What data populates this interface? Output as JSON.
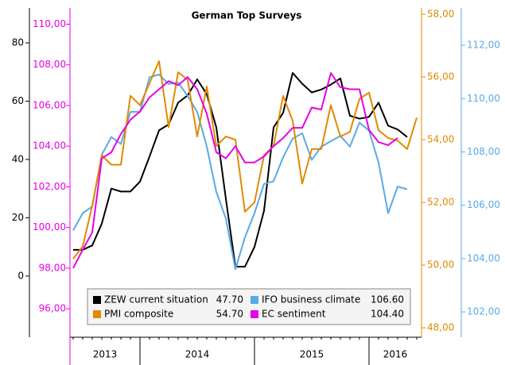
{
  "chart_data": {
    "type": "line",
    "title": "German Top Surveys",
    "categories": [
      null,
      null,
      null,
      null,
      null,
      null,
      null,
      null,
      null,
      null,
      null,
      null,
      null,
      null,
      null,
      null,
      null,
      null,
      null,
      null,
      null,
      null,
      null,
      null,
      null,
      null,
      null,
      null,
      null,
      null,
      null,
      null,
      null,
      null,
      null,
      null,
      null
    ],
    "year_labels": [
      "2013",
      "2014",
      "2015",
      "2016"
    ],
    "ylim": [
      -21,
      92
    ],
    "yticks": [
      0,
      20,
      40,
      60,
      80
    ],
    "y2lim": [
      94.6,
      110.8
    ],
    "y2ticks": [
      {
        "value": 96,
        "label": "96,00"
      },
      {
        "value": 98,
        "label": "98,00"
      },
      {
        "value": 100,
        "label": "100,00"
      },
      {
        "value": 102,
        "label": "102,00"
      },
      {
        "value": 104,
        "label": "104,00"
      },
      {
        "value": 106,
        "label": "106,00"
      },
      {
        "value": 108,
        "label": "108,00"
      },
      {
        "value": 110,
        "label": "110,00"
      }
    ],
    "y3lim": [
      47.7,
      58.2
    ],
    "y3ticks": [
      {
        "value": 48,
        "label": "48,00"
      },
      {
        "value": 50,
        "label": "50,00"
      },
      {
        "value": 52,
        "label": "52,00"
      },
      {
        "value": 54,
        "label": "54,00"
      },
      {
        "value": 56,
        "label": "56,00"
      },
      {
        "value": 58,
        "label": "58,00"
      }
    ],
    "y4lim": [
      101.05,
      113.4
    ],
    "y4ticks": [
      {
        "value": 102,
        "label": "102,00"
      },
      {
        "value": 104,
        "label": "104,00"
      },
      {
        "value": 106,
        "label": "106,00"
      },
      {
        "value": 108,
        "label": "108,00"
      },
      {
        "value": 110,
        "label": "110,00"
      },
      {
        "value": 112,
        "label": "112,00"
      }
    ],
    "axis_colors": {
      "y": "#000000",
      "y2": "#e600e6",
      "y3": "#e08a00",
      "y4": "#5aaae6"
    },
    "series": [
      {
        "name": "ZEW current situation",
        "legend_value": "47.70",
        "color": "#000000",
        "axis": "y",
        "values": [
          9,
          9,
          10.5,
          18,
          30,
          29,
          29,
          32.4,
          41,
          50,
          52,
          59.5,
          62,
          67.5,
          62.4,
          51,
          26.5,
          3.2,
          3.2,
          10,
          22.4,
          51,
          56,
          69.7,
          66,
          63,
          64,
          65.7,
          67.8,
          55,
          54,
          54.6,
          59.5,
          51.6,
          50.3,
          47.7,
          null
        ]
      },
      {
        "name": "IFO business climate",
        "legend_value": "106.60",
        "color": "#5aaae6",
        "axis": "y4",
        "values": [
          105.06,
          105.7,
          105.95,
          107.9,
          108.56,
          108.3,
          109.5,
          109.5,
          110.8,
          110.9,
          110.55,
          110.6,
          110.1,
          109.5,
          108.2,
          106.5,
          105.5,
          103.6,
          104.8,
          105.7,
          106.8,
          106.9,
          107.8,
          108.5,
          108.7,
          107.7,
          108.2,
          108.4,
          108.6,
          108.2,
          109.1,
          108.8,
          107.6,
          105.7,
          106.7,
          106.6,
          null
        ]
      },
      {
        "name": "PMI composite",
        "legend_value": "54.70",
        "color": "#e08a00",
        "axis": "y3",
        "values": [
          50.2,
          50.6,
          51.9,
          53.5,
          53.2,
          53.2,
          55.4,
          55.1,
          55.8,
          56.5,
          54.4,
          56.15,
          55.9,
          54.1,
          55.7,
          53.8,
          54.1,
          54,
          51.7,
          52,
          53.5,
          53.8,
          55.4,
          54.6,
          52.6,
          53.7,
          53.7,
          55.1,
          54.1,
          54.25,
          55.3,
          55.5,
          54.3,
          54.05,
          53.97,
          53.7,
          54.7
        ]
      },
      {
        "name": "EC sentiment",
        "legend_value": "104.40",
        "color": "#e600e6",
        "axis": "y2",
        "values": [
          98,
          98.9,
          99.76,
          103.4,
          103.7,
          104.6,
          105.3,
          105.7,
          106.4,
          106.8,
          107.2,
          107,
          107.4,
          106.8,
          105.6,
          103.7,
          103.4,
          104,
          103.2,
          103.2,
          103.5,
          104,
          104.4,
          104.9,
          104.9,
          105.9,
          105.8,
          107.6,
          106.9,
          106.8,
          106.8,
          104.8,
          104.2,
          104.05,
          104.4,
          null,
          null
        ]
      }
    ]
  }
}
